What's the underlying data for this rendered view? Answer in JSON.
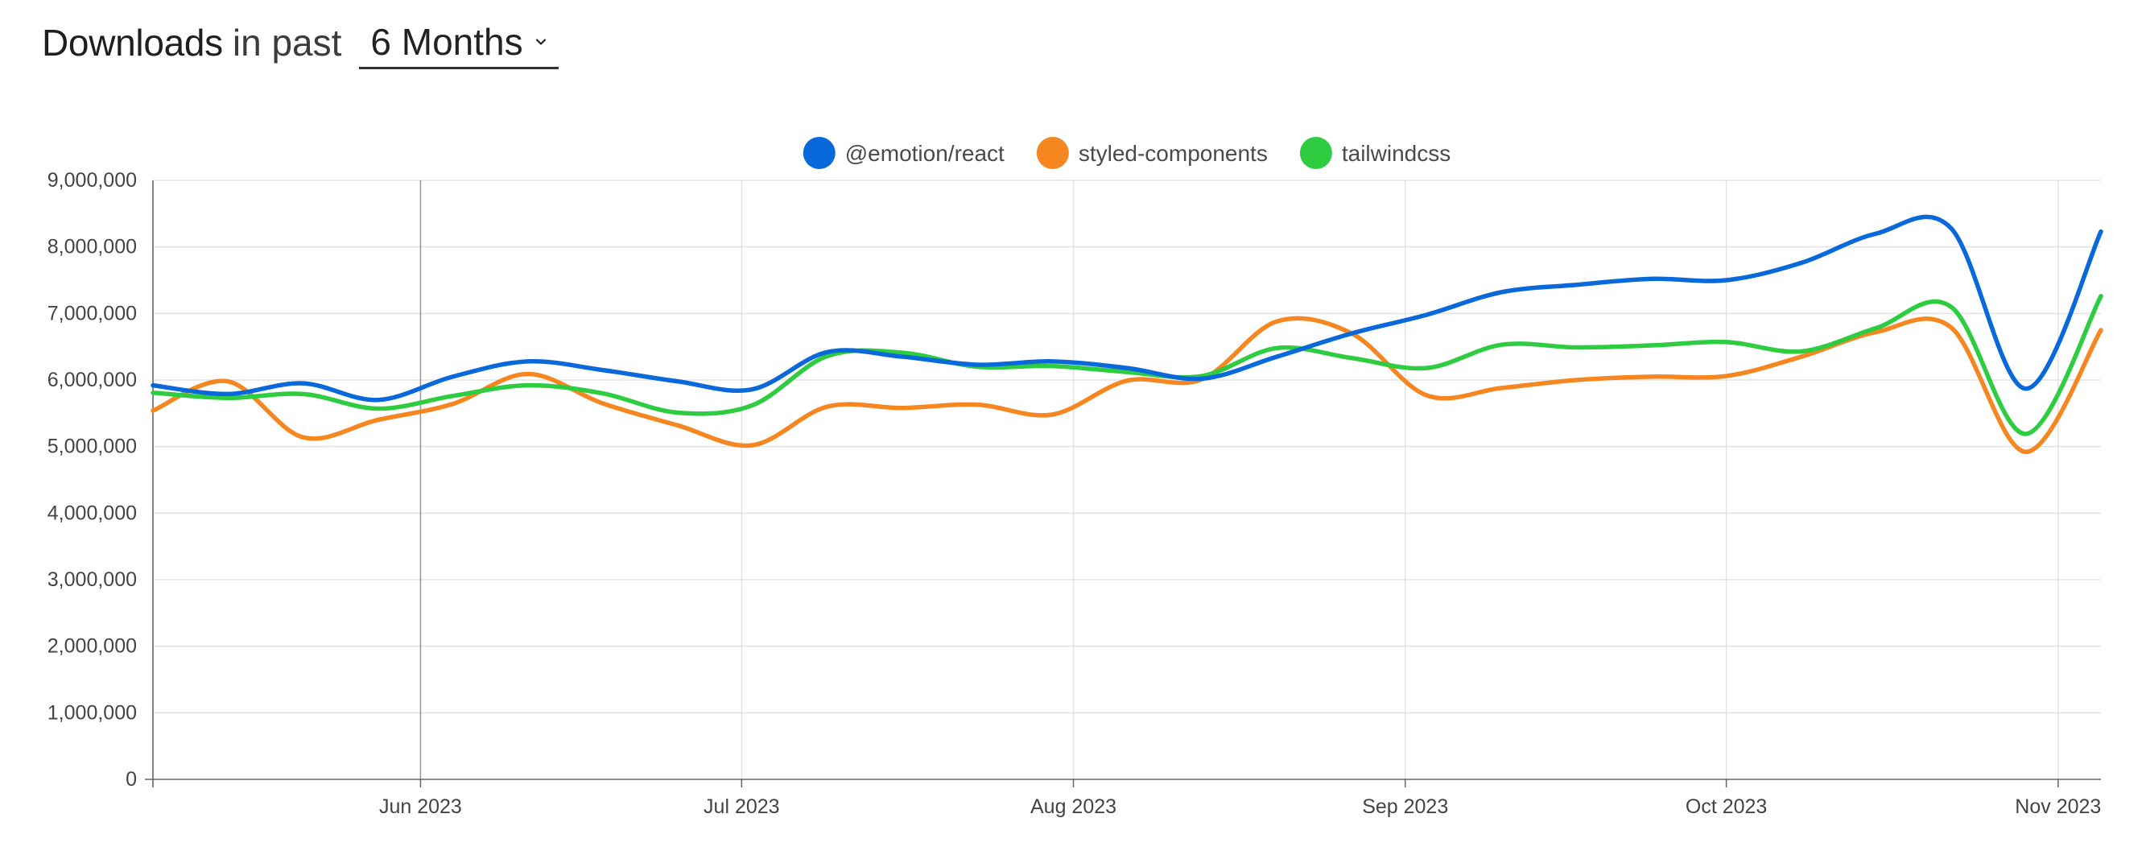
{
  "header": {
    "title_strong": "Downloads",
    "title_light": "in past",
    "period_value": "6 Months",
    "period_icon": "chevron-down-icon"
  },
  "chart_data": {
    "type": "line",
    "title": "Downloads in past 6 Months",
    "xlabel": "",
    "ylabel": "",
    "ylim": [
      0,
      9000000
    ],
    "yticks": [
      0,
      1000000,
      2000000,
      3000000,
      4000000,
      5000000,
      6000000,
      7000000,
      8000000,
      9000000
    ],
    "ytick_labels": [
      "0",
      "1,000,000",
      "2,000,000",
      "3,000,000",
      "4,000,000",
      "5,000,000",
      "6,000,000",
      "7,000,000",
      "8,000,000",
      "9,000,000"
    ],
    "xlim": [
      "2023-05-07",
      "2023-11-05"
    ],
    "x_ticks": [
      {
        "date": "2023-06-01",
        "label": "Jun 2023"
      },
      {
        "date": "2023-07-01",
        "label": "Jul 2023"
      },
      {
        "date": "2023-08-01",
        "label": "Aug 2023"
      },
      {
        "date": "2023-09-01",
        "label": "Sep 2023"
      },
      {
        "date": "2023-10-01",
        "label": "Oct 2023"
      },
      {
        "date": "2023-11-01",
        "label": "Nov 2023"
      }
    ],
    "grid": true,
    "legend_position": "top-center",
    "x": [
      "2023-05-07",
      "2023-05-14",
      "2023-05-21",
      "2023-05-28",
      "2023-06-04",
      "2023-06-11",
      "2023-06-18",
      "2023-06-25",
      "2023-07-02",
      "2023-07-09",
      "2023-07-16",
      "2023-07-23",
      "2023-07-30",
      "2023-08-06",
      "2023-08-13",
      "2023-08-20",
      "2023-08-27",
      "2023-09-03",
      "2023-09-10",
      "2023-09-17",
      "2023-09-24",
      "2023-10-01",
      "2023-10-08",
      "2023-10-15",
      "2023-10-22",
      "2023-10-29",
      "2023-11-05"
    ],
    "series": [
      {
        "name": "@emotion/react",
        "color": "#0969da",
        "values": [
          5920000,
          5790000,
          5950000,
          5700000,
          6050000,
          6280000,
          6150000,
          5980000,
          5860000,
          6420000,
          6350000,
          6230000,
          6280000,
          6180000,
          6020000,
          6350000,
          6700000,
          6980000,
          7320000,
          7430000,
          7520000,
          7500000,
          7760000,
          8200000,
          8280000,
          5870000,
          8230000
        ]
      },
      {
        "name": "styled-components",
        "color": "#f68620",
        "values": [
          5540000,
          5980000,
          5140000,
          5400000,
          5640000,
          6090000,
          5650000,
          5320000,
          5020000,
          5600000,
          5580000,
          5630000,
          5480000,
          5990000,
          6010000,
          6880000,
          6700000,
          5770000,
          5880000,
          6000000,
          6050000,
          6060000,
          6350000,
          6720000,
          6790000,
          4920000,
          6750000
        ]
      },
      {
        "name": "tailwindcss",
        "color": "#2ecc40",
        "values": [
          5810000,
          5730000,
          5790000,
          5570000,
          5760000,
          5920000,
          5800000,
          5510000,
          5620000,
          6360000,
          6410000,
          6200000,
          6210000,
          6120000,
          6060000,
          6480000,
          6330000,
          6180000,
          6530000,
          6490000,
          6520000,
          6570000,
          6430000,
          6780000,
          7100000,
          5190000,
          7260000
        ]
      }
    ]
  }
}
